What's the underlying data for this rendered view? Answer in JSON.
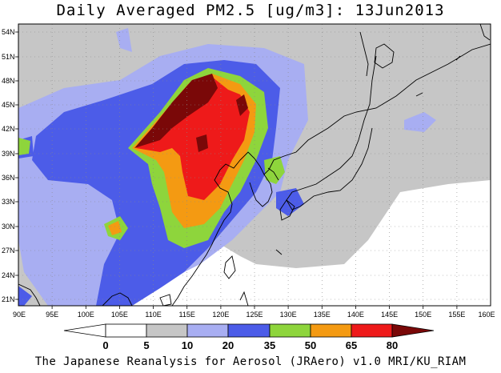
{
  "title": "Daily Averaged PM2.5 [ug/m3]: 13Jun2013",
  "footer": "The Japanese Reanalysis for Aerosol (JRAero) v1.0 MRI/KU_RIAM",
  "lat_ticks": [
    "54N",
    "51N",
    "48N",
    "45N",
    "42N",
    "39N",
    "36N",
    "33N",
    "30N",
    "27N",
    "24N",
    "21N"
  ],
  "lon_ticks": [
    "90E",
    "95E",
    "100E",
    "105E",
    "110E",
    "115E",
    "120E",
    "125E",
    "130E",
    "135E",
    "140E",
    "145E",
    "150E",
    "155E",
    "160E"
  ],
  "colorbar": {
    "labels": [
      "0",
      "5",
      "10",
      "20",
      "35",
      "50",
      "65",
      "80"
    ],
    "colors": [
      "#ffffff",
      "#c6c6c6",
      "#a8aef2",
      "#4c5ce8",
      "#8ed53c",
      "#f49a12",
      "#ee1a1a",
      "#7a0808"
    ]
  }
}
